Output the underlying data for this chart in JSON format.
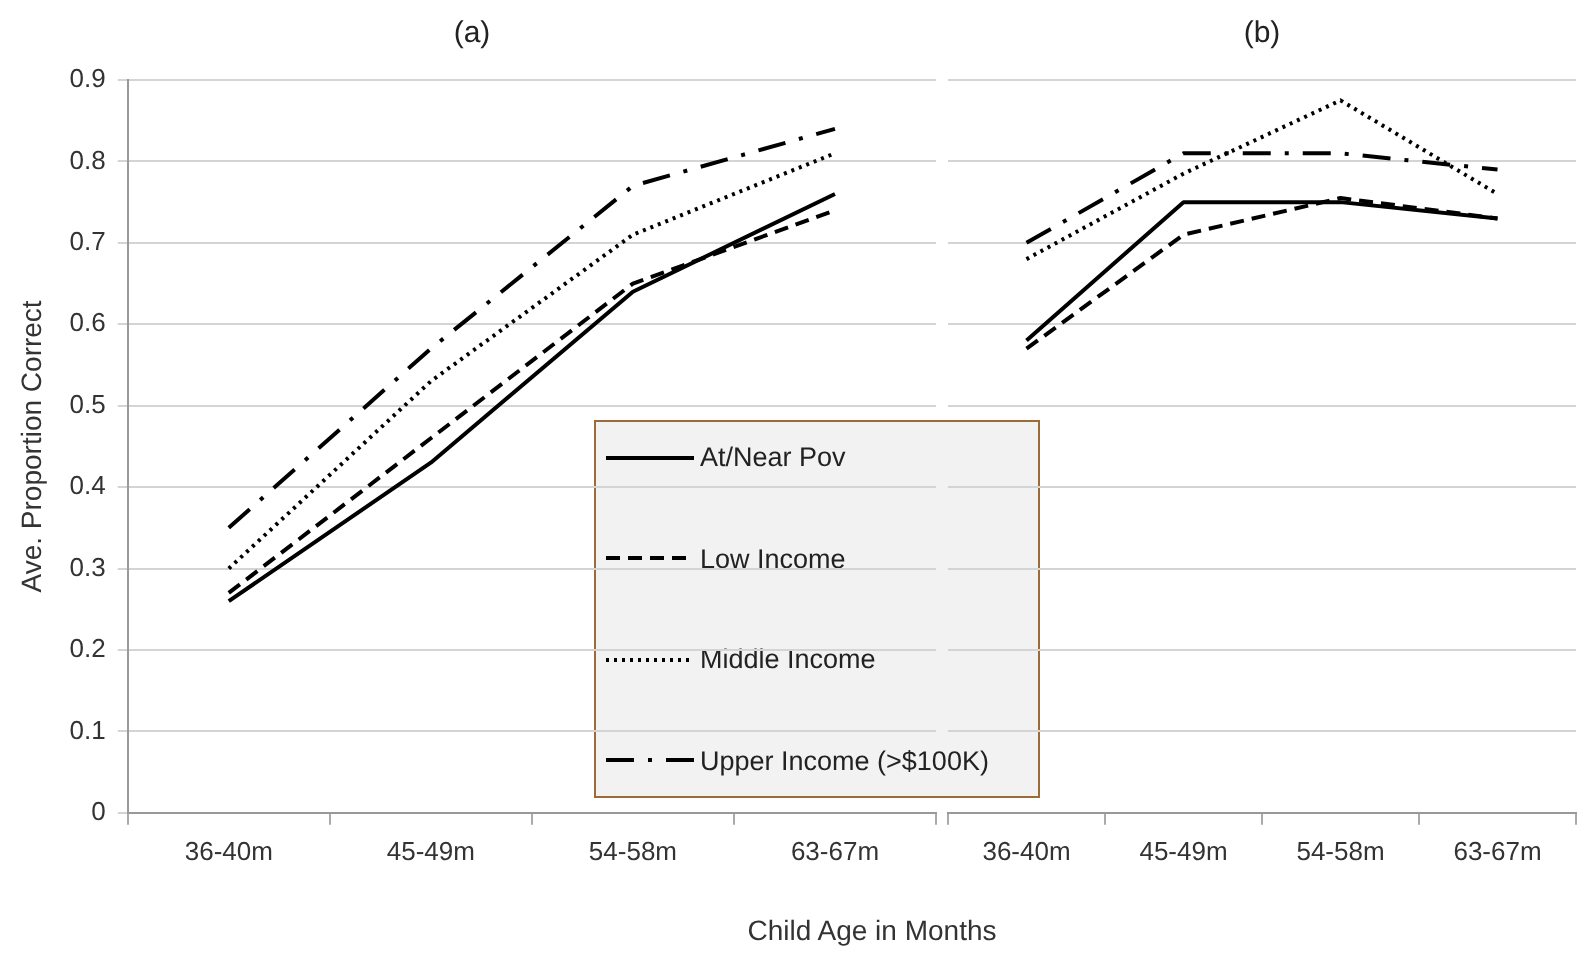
{
  "chart_data": [
    {
      "type": "line",
      "title": "(a)",
      "ylabel": "Ave. Proportion Correct",
      "xlabel": "Child Age in Months",
      "categories": [
        "36-40m",
        "45-49m",
        "54-58m",
        "63-67m"
      ],
      "ylim": [
        0,
        0.9
      ],
      "yticks": [
        0,
        0.1,
        0.2,
        0.3,
        0.4,
        0.5,
        0.6,
        0.7,
        0.8,
        0.9
      ],
      "grid": "y",
      "legend": "bottom right",
      "marker": "none",
      "series": [
        {
          "name": "At/Near Pov",
          "color": "#000000",
          "line_style": "solid",
          "values": [
            0.26,
            0.43,
            0.64,
            0.76
          ]
        },
        {
          "name": "Low Income",
          "color": "#000000",
          "line_style": "dashed",
          "values": [
            0.27,
            0.46,
            0.65,
            0.74
          ]
        },
        {
          "name": "Middle Income",
          "color": "#000000",
          "line_style": "dotted",
          "values": [
            0.3,
            0.53,
            0.71,
            0.81
          ]
        },
        {
          "name": "Upper Income (>$100K)",
          "color": "#000000",
          "line_style": "dashdot",
          "values": [
            0.35,
            0.57,
            0.77,
            0.84
          ]
        }
      ]
    },
    {
      "type": "line",
      "title": "(b)",
      "categories": [
        "36-40m",
        "45-49m",
        "54-58m",
        "63-67m"
      ],
      "ylim": [
        0,
        0.9
      ],
      "yticks": [
        0,
        0.1,
        0.2,
        0.3,
        0.4,
        0.5,
        0.6,
        0.7,
        0.8,
        0.9
      ],
      "grid": "y",
      "tick_labels": "x",
      "marker": "none",
      "series": [
        {
          "color": "#000000",
          "line_style": "solid",
          "values": [
            0.58,
            0.75,
            0.75,
            0.73
          ]
        },
        {
          "color": "#000000",
          "line_style": "dashed",
          "values": [
            0.57,
            0.71,
            0.755,
            0.73
          ]
        },
        {
          "color": "#000000",
          "line_style": "dotted",
          "values": [
            0.68,
            0.785,
            0.875,
            0.76
          ]
        },
        {
          "color": "#000000",
          "line_style": "dashdot",
          "values": [
            0.7,
            0.81,
            0.81,
            0.79
          ]
        }
      ]
    }
  ]
}
